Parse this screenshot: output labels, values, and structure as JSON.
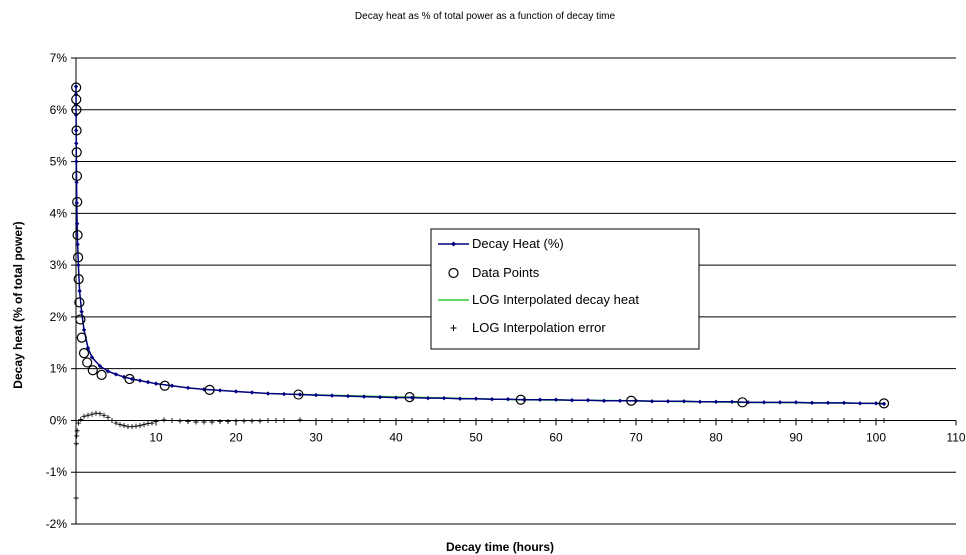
{
  "chart_data": {
    "type": "line",
    "title": "Decay heat as % of total power as a function of decay time",
    "xlabel": "Decay time (hours)",
    "ylabel": "Decay heat (% of total power)",
    "xlim": [
      0,
      110
    ],
    "ylim": [
      -2,
      7
    ],
    "x_ticks": [
      10,
      20,
      30,
      40,
      50,
      60,
      70,
      80,
      90,
      100,
      110
    ],
    "x_tick_labels": [
      "10",
      "20",
      "30",
      "40",
      "50",
      "60",
      "70",
      "80",
      "90",
      "100",
      "110"
    ],
    "y_ticks": [
      -2,
      -1,
      0,
      1,
      2,
      3,
      4,
      5,
      6,
      7
    ],
    "y_tick_labels": [
      "-2%",
      "-1%",
      "0%",
      "1%",
      "2%",
      "3%",
      "4%",
      "5%",
      "6%",
      "7%"
    ],
    "grid": "horizontal",
    "legend_position": "center-right",
    "colors": {
      "decay_heat": "#000080",
      "data_points": "#000000",
      "log_interp": "#33cc33",
      "error": "#000000"
    },
    "series": [
      {
        "name": "Decay Heat (%)",
        "style": "line-with-diamonds",
        "x": [
          0.001,
          0.003,
          0.007,
          0.012,
          0.02,
          0.03,
          0.05,
          0.07,
          0.1,
          0.14,
          0.2,
          0.3,
          0.45,
          0.7,
          1,
          1.5,
          2,
          3,
          4,
          5,
          6,
          7,
          8,
          9,
          10,
          12,
          14,
          16,
          18,
          20,
          22,
          24,
          26,
          28,
          30,
          32,
          34,
          36,
          38,
          40,
          42,
          44,
          46,
          48,
          50,
          52,
          54,
          56,
          58,
          60,
          62,
          64,
          66,
          68,
          70,
          72,
          74,
          76,
          78,
          80,
          82,
          84,
          86,
          88,
          90,
          92,
          94,
          96,
          98,
          100,
          101
        ],
        "y": [
          6.45,
          6.3,
          6.1,
          5.9,
          5.6,
          5.35,
          5.0,
          4.6,
          4.2,
          3.8,
          3.4,
          3.0,
          2.5,
          2.1,
          1.75,
          1.4,
          1.22,
          1.05,
          0.95,
          0.89,
          0.84,
          0.8,
          0.77,
          0.74,
          0.71,
          0.67,
          0.63,
          0.6,
          0.58,
          0.56,
          0.54,
          0.52,
          0.51,
          0.5,
          0.49,
          0.48,
          0.47,
          0.46,
          0.45,
          0.44,
          0.44,
          0.43,
          0.43,
          0.42,
          0.42,
          0.41,
          0.41,
          0.4,
          0.4,
          0.4,
          0.39,
          0.39,
          0.38,
          0.38,
          0.38,
          0.37,
          0.37,
          0.37,
          0.36,
          0.36,
          0.36,
          0.35,
          0.35,
          0.35,
          0.35,
          0.34,
          0.34,
          0.34,
          0.33,
          0.33,
          0.32
        ]
      },
      {
        "name": "Data Points",
        "style": "open-circles",
        "x": [
          0.02,
          0.03,
          0.05,
          0.07,
          0.09,
          0.12,
          0.15,
          0.2,
          0.26,
          0.33,
          0.42,
          0.55,
          0.72,
          1.0,
          1.4,
          2.1,
          3.2,
          6.7,
          11.1,
          16.7,
          27.8,
          41.7,
          55.6,
          69.4,
          83.3,
          101
        ],
        "y": [
          6.43,
          6.2,
          6.0,
          5.6,
          5.18,
          4.72,
          4.22,
          3.58,
          3.15,
          2.73,
          2.28,
          1.95,
          1.6,
          1.3,
          1.12,
          0.97,
          0.88,
          0.8,
          0.67,
          0.59,
          0.5,
          0.45,
          0.4,
          0.38,
          0.35,
          0.33
        ]
      },
      {
        "name": "LOG Interpolated decay heat",
        "style": "line",
        "x": [
          27.8,
          41.7,
          55.6,
          69.4,
          83.3,
          101
        ],
        "y": [
          0.5,
          0.45,
          0.4,
          0.38,
          0.35,
          0.33
        ]
      },
      {
        "name": "LOG Interpolation error",
        "style": "plus",
        "x": [
          0.02,
          0.04,
          0.08,
          0.15,
          0.3,
          0.6,
          1.0,
          1.5,
          2.0,
          2.5,
          3.0,
          3.5,
          4.0,
          4.5,
          5.0,
          5.5,
          6.0,
          6.5,
          7.0,
          7.5,
          8.0,
          8.5,
          9.0,
          9.5,
          10,
          11,
          12,
          13,
          14,
          15,
          16,
          17,
          18,
          19,
          20,
          21,
          22,
          23,
          24,
          25,
          26,
          28,
          30,
          32,
          34,
          36,
          38,
          40,
          42,
          44,
          46,
          48,
          50,
          52,
          54,
          56,
          58,
          60,
          62,
          64,
          66,
          68,
          70,
          72,
          74,
          76,
          78,
          80,
          82,
          84,
          86,
          88,
          90,
          92,
          94,
          96,
          98,
          100,
          101
        ],
        "y": [
          -1.5,
          -0.45,
          -0.3,
          -0.2,
          -0.05,
          0.02,
          0.08,
          0.1,
          0.12,
          0.14,
          0.13,
          0.1,
          0.06,
          0.0,
          -0.05,
          -0.08,
          -0.1,
          -0.12,
          -0.12,
          -0.11,
          -0.1,
          -0.08,
          -0.06,
          -0.05,
          -0.02,
          0.01,
          0.0,
          -0.01,
          -0.02,
          -0.03,
          -0.03,
          -0.03,
          -0.02,
          -0.02,
          -0.01,
          -0.01,
          -0.01,
          -0.01,
          0.0,
          0.0,
          0.0,
          0.01,
          0.0,
          0.0,
          0.0,
          0.0,
          0.0,
          0.0,
          0.0,
          0.0,
          0.0,
          0.0,
          0.0,
          0.0,
          0.0,
          0.0,
          0.0,
          0.0,
          0.0,
          0.0,
          0.0,
          0.0,
          0.0,
          0.0,
          0.0,
          0.0,
          0.0,
          0.0,
          0.0,
          0.0,
          0.0,
          0.0,
          0.0,
          0.0,
          0.0,
          0.0,
          0.0,
          0.0,
          0.0
        ]
      }
    ]
  }
}
